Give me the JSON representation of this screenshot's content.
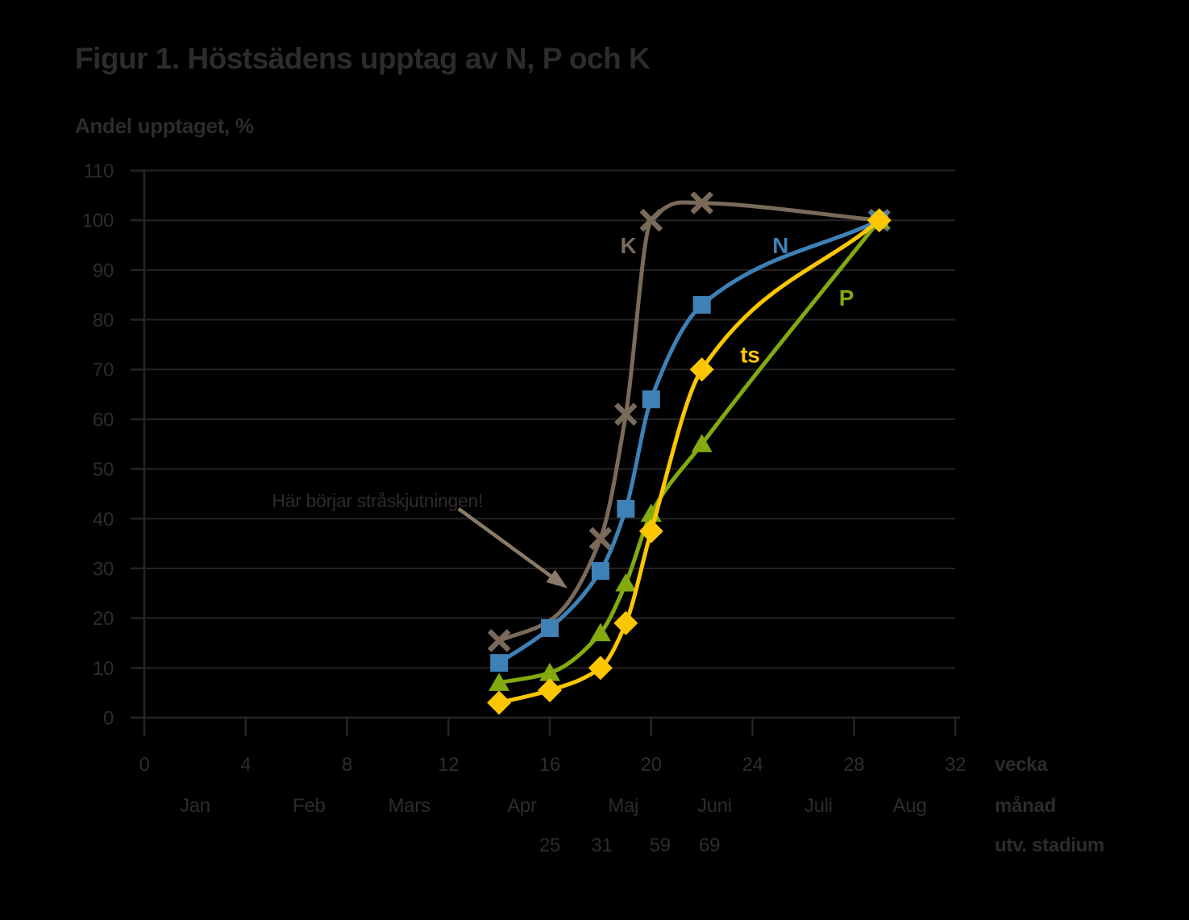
{
  "chart_data": {
    "type": "line",
    "title": "Figur 1. Höstsädens upptag av N, P och K",
    "y_axis_label": "Andel upptaget, %",
    "x_axis": {
      "min": 0,
      "max": 32,
      "tick_step": 4,
      "ticks": [
        0,
        4,
        8,
        12,
        16,
        20,
        24,
        28,
        32
      ],
      "caption": "vecka"
    },
    "y_axis": {
      "min": 0,
      "max": 110,
      "tick_step": 10,
      "ticks": [
        0,
        10,
        20,
        30,
        40,
        50,
        60,
        70,
        80,
        90,
        100,
        110
      ]
    },
    "month_row": {
      "caption": "månad",
      "labels": [
        {
          "label": "Jan",
          "week": 2.0
        },
        {
          "label": "Feb",
          "week": 6.5
        },
        {
          "label": "Mars",
          "week": 10.45
        },
        {
          "label": "Apr",
          "week": 14.9
        },
        {
          "label": "Maj",
          "week": 18.9
        },
        {
          "label": "Juni",
          "week": 22.5
        },
        {
          "label": "Juli",
          "week": 26.6
        },
        {
          "label": "Aug",
          "week": 30.2
        }
      ]
    },
    "utv_row": {
      "caption": "utv. stadium",
      "labels": [
        {
          "label": "25",
          "week": 16.0
        },
        {
          "label": "31",
          "week": 18.05
        },
        {
          "label": "59",
          "week": 20.35
        },
        {
          "label": "69",
          "week": 22.3
        }
      ]
    },
    "annotation": {
      "text": "Här börjar stråskjutningen!",
      "text_pos": [
        9.2,
        45.2
      ],
      "arrow_from": [
        12.4,
        42.0
      ],
      "arrow_to": [
        16.7,
        26.0
      ],
      "color": "#8a7a69"
    },
    "series": [
      {
        "name": "K",
        "label": "K",
        "color": "#7a6a5a",
        "marker": "x",
        "label_pos": [
          19.1,
          95.0
        ],
        "path_points": [
          [
            14,
            15.5
          ],
          [
            16,
            19.5
          ],
          [
            18,
            36
          ],
          [
            19,
            61
          ],
          [
            20,
            100
          ],
          [
            21.2,
            103.6
          ],
          [
            22,
            103.5
          ],
          [
            29,
            100
          ]
        ],
        "marker_weeks": [
          14,
          18,
          19,
          20,
          22,
          29
        ],
        "marker_values": [
          15.5,
          36,
          61,
          100,
          103.5,
          100
        ]
      },
      {
        "name": "N",
        "label": "N",
        "color": "#3e81b7",
        "marker": "square",
        "label_pos": [
          25.1,
          95.0
        ],
        "path_points": [
          [
            14,
            11
          ],
          [
            16,
            18
          ],
          [
            18,
            29.5
          ],
          [
            19,
            42
          ],
          [
            20,
            64
          ],
          [
            22,
            83
          ],
          [
            29,
            100
          ]
        ],
        "marker_weeks": [
          14,
          16,
          18,
          19,
          20,
          22,
          29
        ],
        "marker_values": [
          11,
          18,
          29.5,
          42,
          64,
          83,
          100
        ]
      },
      {
        "name": "P",
        "label": "P",
        "color": "#83aa0f",
        "marker": "triangle",
        "label_pos": [
          27.7,
          84.5
        ],
        "path_points": [
          [
            14,
            7
          ],
          [
            16,
            9
          ],
          [
            18,
            17
          ],
          [
            19,
            27
          ],
          [
            20,
            41
          ],
          [
            22,
            55
          ],
          [
            29,
            100
          ]
        ],
        "marker_weeks": [
          14,
          16,
          18,
          19,
          20,
          22,
          29
        ],
        "marker_values": [
          7,
          9,
          17,
          27,
          41,
          55,
          100
        ]
      },
      {
        "name": "ts",
        "label": "ts",
        "color": "#fcc602",
        "marker": "diamond",
        "label_pos": [
          23.9,
          73.0
        ],
        "path_points": [
          [
            14,
            3
          ],
          [
            16,
            5.5
          ],
          [
            18,
            10
          ],
          [
            19,
            19
          ],
          [
            20,
            37.5
          ],
          [
            22,
            70
          ],
          [
            29,
            100
          ]
        ],
        "marker_weeks": [
          14,
          16,
          18,
          19,
          20,
          22,
          29
        ],
        "marker_values": [
          3,
          5.5,
          10,
          19,
          37.5,
          70,
          100
        ]
      }
    ],
    "colors": {
      "background": "#000000",
      "text": "#2f2b2c",
      "grid": "#272425"
    }
  }
}
